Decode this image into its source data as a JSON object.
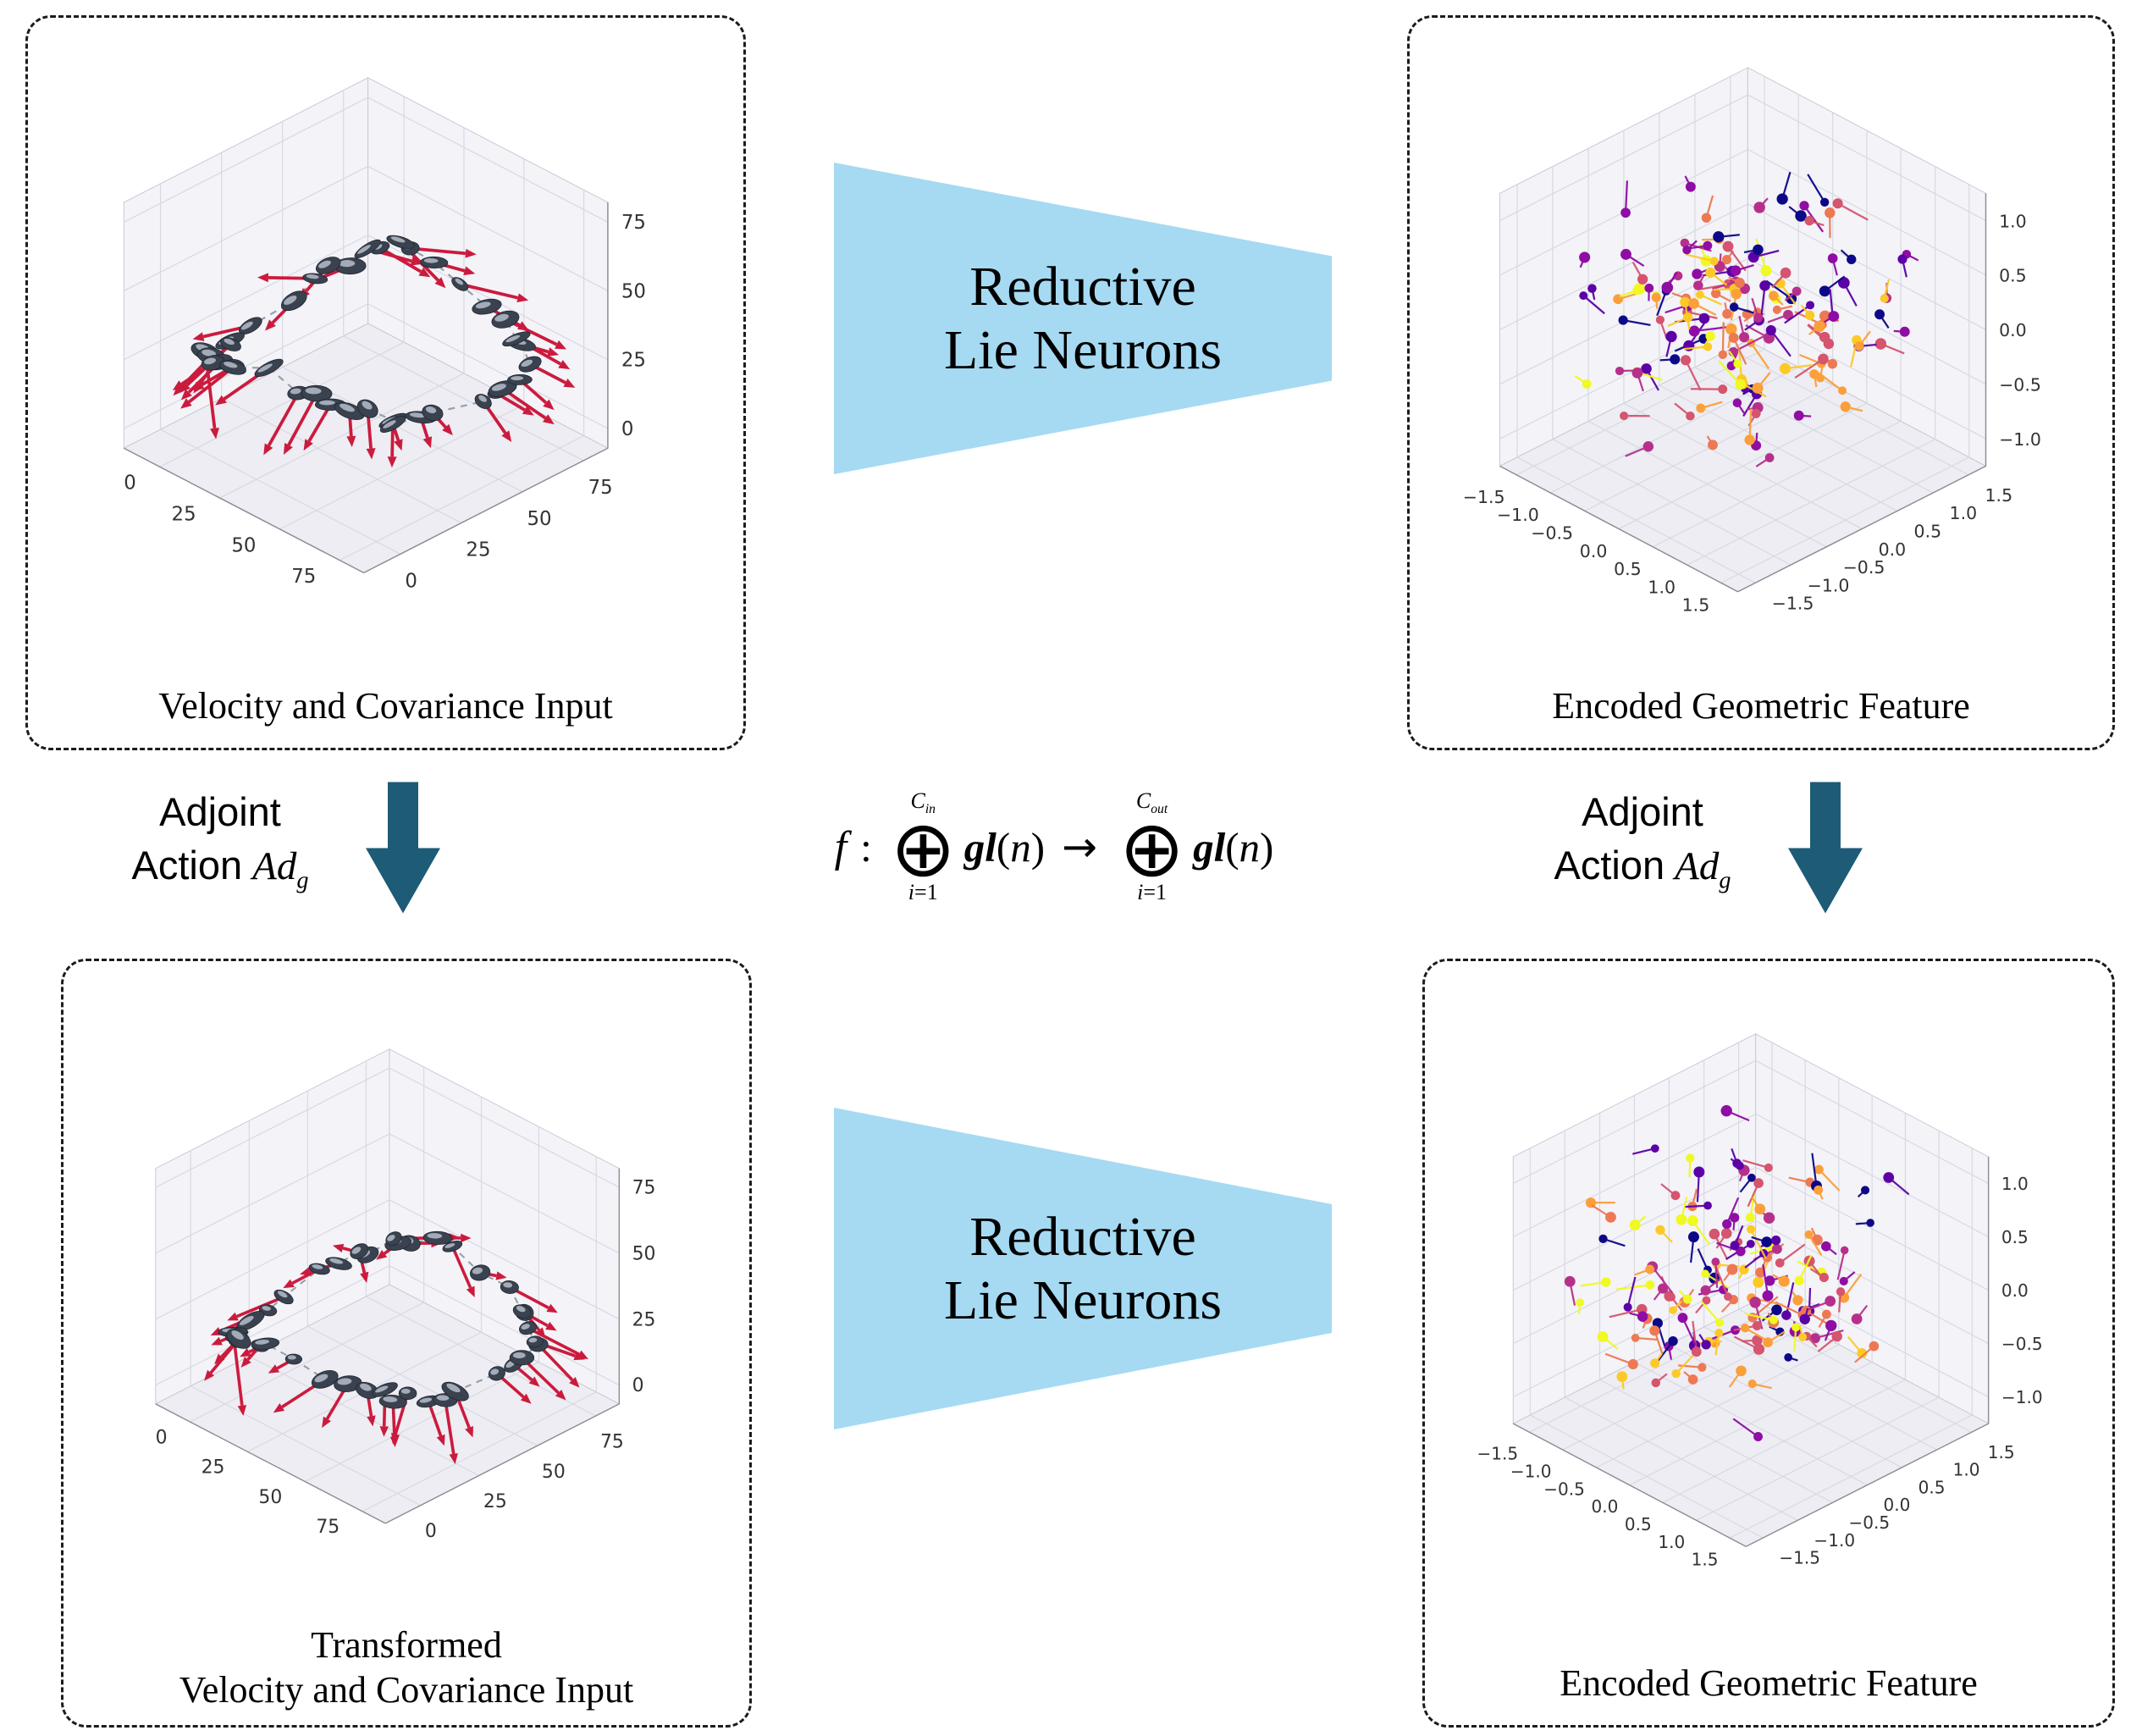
{
  "panels": {
    "input": {
      "caption": "Velocity and Covariance Input"
    },
    "encoded_top": {
      "caption": "Encoded Geometric Feature"
    },
    "transformed": {
      "caption_line1": "Transformed",
      "caption_line2": "Velocity and Covariance Input"
    },
    "encoded_bottom": {
      "caption": "Encoded Geometric Feature"
    }
  },
  "funnel": {
    "line1": "Reductive",
    "line2": "Lie Neurons",
    "fill_color": "#a5daf2"
  },
  "adjoint": {
    "word1": "Adjoint",
    "word2": "Action",
    "operator": "Ad",
    "subscript": "g",
    "arrow_color": "#1d5b77"
  },
  "formula": {
    "f": "f",
    "colon": ":",
    "oplus": "⊕",
    "upper_c": "C",
    "upper_in": "in",
    "upper_out": "out",
    "lower_i": "i",
    "lower_eq": "=1",
    "algebra": "gl",
    "paren_open": "(",
    "var_n": "n",
    "paren_close": ")",
    "maps_to": "→"
  },
  "trajectory_plot": {
    "x_ticks": [
      "0",
      "25",
      "50",
      "75"
    ],
    "y_ticks": [
      "0",
      "25",
      "50",
      "75"
    ],
    "z_ticks": [
      "0",
      "25",
      "50",
      "75"
    ],
    "path_color": "#9aa0a8",
    "marker_color": "#3a4250",
    "marker_highlight": "#c6cfd9",
    "quiver_color": "#cb1b3d"
  },
  "feature_plot": {
    "x_ticks": [
      "−1.5",
      "−1.0",
      "−0.5",
      "0.0",
      "0.5",
      "1.0",
      "1.5"
    ],
    "y_ticks": [
      "1.5",
      "1.0",
      "0.5",
      "0.0",
      "−0.5",
      "−1.0",
      "−1.5"
    ],
    "z_ticks": [
      "1.0",
      "0.5",
      "0.0",
      "−0.5",
      "−1.0"
    ],
    "palette": [
      "#0d0887",
      "#5c01a6",
      "#8f0da4",
      "#b6308b",
      "#d5546e",
      "#ed7953",
      "#fb9f3a",
      "#fdc926",
      "#f0f921"
    ]
  }
}
